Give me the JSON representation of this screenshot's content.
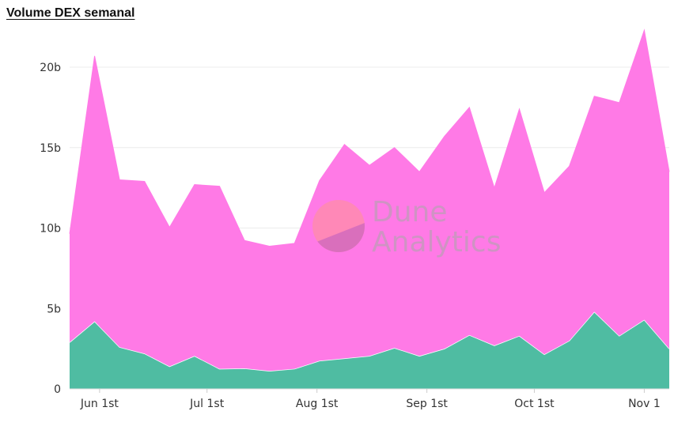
{
  "chart_data": {
    "type": "area",
    "stacked": true,
    "title": "Volume DEX semanal",
    "ylim": [
      0,
      23
    ],
    "y_ticks": [
      0,
      5,
      10,
      15,
      20
    ],
    "y_tick_labels": [
      "0",
      "5b",
      "10b",
      "15b",
      "20b"
    ],
    "x_ticks": [
      {
        "index": 1.2,
        "label": "Jun 1st"
      },
      {
        "index": 5.5,
        "label": "Jul 1st"
      },
      {
        "index": 9.9,
        "label": "Aug 1st"
      },
      {
        "index": 14.3,
        "label": "Sep 1st"
      },
      {
        "index": 18.6,
        "label": "Oct 1st"
      },
      {
        "index": 23.0,
        "label": "Nov 1"
      }
    ],
    "grid": true,
    "series": [
      {
        "color": "#4fbca2",
        "values": [
          2.9,
          4.2,
          2.6,
          2.2,
          1.4,
          2.05,
          1.25,
          1.28,
          1.12,
          1.25,
          1.75,
          1.9,
          2.05,
          2.55,
          2.05,
          2.5,
          3.35,
          2.7,
          3.3,
          2.15,
          3.0,
          4.8,
          3.3,
          4.3,
          2.5
        ]
      },
      {
        "color": "#ff7ae6",
        "values": [
          6.75,
          16.5,
          10.4,
          10.7,
          8.65,
          10.65,
          11.35,
          7.95,
          7.75,
          7.8,
          11.2,
          13.3,
          11.85,
          12.45,
          11.45,
          13.2,
          14.15,
          9.8,
          14.1,
          10.05,
          10.85,
          13.4,
          14.5,
          18.0,
          11.0
        ]
      }
    ],
    "watermark": [
      "Dune",
      "Analytics"
    ]
  }
}
